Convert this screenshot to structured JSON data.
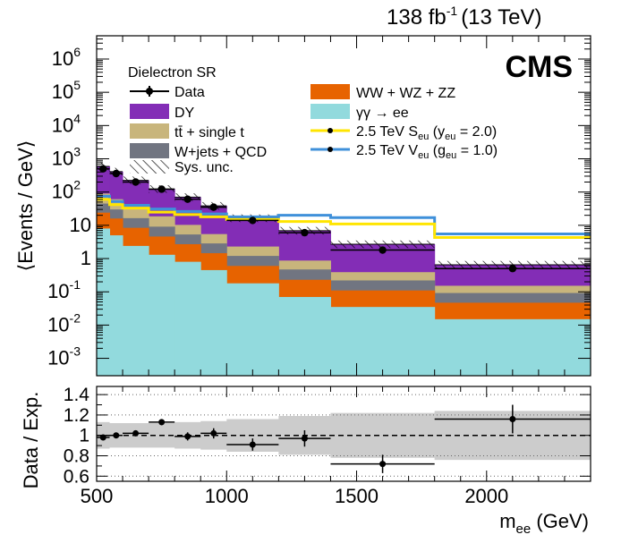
{
  "header": {
    "lumi": "138 fb",
    "lumi_sup": "-1",
    "energy": "(13 TeV)",
    "experiment": "CMS"
  },
  "colors": {
    "dy": "#832db6",
    "ttbar": "#c8b57c",
    "wjets": "#717581",
    "diboson": "#e76300",
    "gammagamma": "#92dadd",
    "scalar": "#ffe500",
    "vector": "#3f90da",
    "band": "#cccccc"
  },
  "chart_data": [
    {
      "type": "bar",
      "title": "Dielectron SR",
      "ylabel": "⟨Events / GeV⟩",
      "yscale": "log",
      "ylim": [
        0.0003,
        5000000
      ],
      "xlim": [
        500,
        2400
      ],
      "y_ticks": [
        {
          "value": 0.001,
          "base": "10",
          "exp": "-3"
        },
        {
          "value": 0.01,
          "base": "10",
          "exp": "-2"
        },
        {
          "value": 0.1,
          "base": "10",
          "exp": "-1"
        },
        {
          "value": 1,
          "base": "1",
          "exp": ""
        },
        {
          "value": 10,
          "base": "10",
          "exp": ""
        },
        {
          "value": 100,
          "base": "10",
          "exp": "2"
        },
        {
          "value": 1000,
          "base": "10",
          "exp": "3"
        },
        {
          "value": 10000,
          "base": "10",
          "exp": "4"
        },
        {
          "value": 100000,
          "base": "10",
          "exp": "5"
        },
        {
          "value": 1000000,
          "base": "10",
          "exp": "6"
        }
      ],
      "bin_edges": [
        500,
        550,
        600,
        700,
        800,
        900,
        1000,
        1200,
        1400,
        1800,
        2400
      ],
      "stack": [
        {
          "key": "gammagamma",
          "name": "γγ → ee",
          "values": [
            8,
            5,
            2.4,
            1.3,
            0.8,
            0.45,
            0.18,
            0.07,
            0.035,
            0.015
          ]
        },
        {
          "key": "diboson",
          "name": "WW + WZ + ZZ",
          "values": [
            16,
            11,
            6,
            3.3,
            1.9,
            1.0,
            0.42,
            0.16,
            0.075,
            0.032
          ]
        },
        {
          "key": "wjets",
          "name": "W+jets + QCD",
          "values": [
            21,
            14,
            8,
            4.5,
            2.6,
            1.4,
            0.6,
            0.24,
            0.11,
            0.045
          ]
        },
        {
          "key": "ttbar",
          "name": "tt̄ + single t",
          "values": [
            45,
            31,
            19,
            9.5,
            5,
            2.6,
            1.1,
            0.4,
            0.17,
            0.06
          ]
        },
        {
          "key": "dy",
          "name": "DY",
          "values": [
            500,
            350,
            190,
            105,
            60,
            33,
            14,
            6,
            2.3,
            0.5
          ]
        }
      ],
      "data": {
        "name": "Data",
        "x": [
          525,
          575,
          650,
          750,
          850,
          950,
          1100,
          1300,
          1600,
          2100
        ],
        "y": [
          500,
          360,
          200,
          122,
          61,
          35,
          14,
          6,
          1.8,
          0.5
        ]
      },
      "signals": [
        {
          "key": "scalar",
          "name": "2.5 TeV S",
          "sub": "eu",
          "coupling": " (y",
          "coupling_sub": "eu",
          "coupling_val": " = 2.0)",
          "values": [
            60,
            42,
            33,
            25,
            21,
            18,
            15,
            13,
            11,
            4.3
          ]
        },
        {
          "key": "vector",
          "name": "2.5 TeV V",
          "sub": "eu",
          "coupling": " (g",
          "coupling_sub": "eu",
          "coupling_val": " = 1.0)",
          "values": [
            75,
            52,
            40,
            31,
            26,
            22,
            18,
            20,
            17,
            5.5
          ]
        }
      ],
      "legend": {
        "data": "Data",
        "dy": "DY",
        "ttbar": "tt̄ + single t",
        "wjets": "W+jets + QCD",
        "sys": "Sys. unc.",
        "diboson": "WW + WZ + ZZ",
        "gammagamma": "γγ → ee"
      }
    },
    {
      "type": "scatter",
      "ylabel": "Data / Exp.",
      "xlabel": "m",
      "xlabel_sub": "ee",
      "xlabel_unit": " (GeV)",
      "ylim": [
        0.55,
        1.48
      ],
      "xlim": [
        500,
        2400
      ],
      "y_ticks": [
        "0.6",
        "0.8",
        "1",
        "1.2",
        "1.4"
      ],
      "x_ticks": [
        "500",
        "1000",
        "1500",
        "2000"
      ],
      "reference_line": 1.0,
      "bin_edges": [
        500,
        550,
        600,
        700,
        800,
        900,
        1000,
        1200,
        1400,
        1800,
        2400
      ],
      "band_half_width": [
        0.13,
        0.12,
        0.12,
        0.12,
        0.13,
        0.14,
        0.16,
        0.19,
        0.22,
        0.24
      ],
      "ratio": [
        0.98,
        1.0,
        1.02,
        1.13,
        0.99,
        1.02,
        0.91,
        0.97,
        0.72,
        1.16
      ],
      "ratio_err": [
        0.02,
        0.02,
        0.02,
        0.03,
        0.04,
        0.05,
        0.06,
        0.08,
        0.09,
        0.14
      ]
    }
  ]
}
